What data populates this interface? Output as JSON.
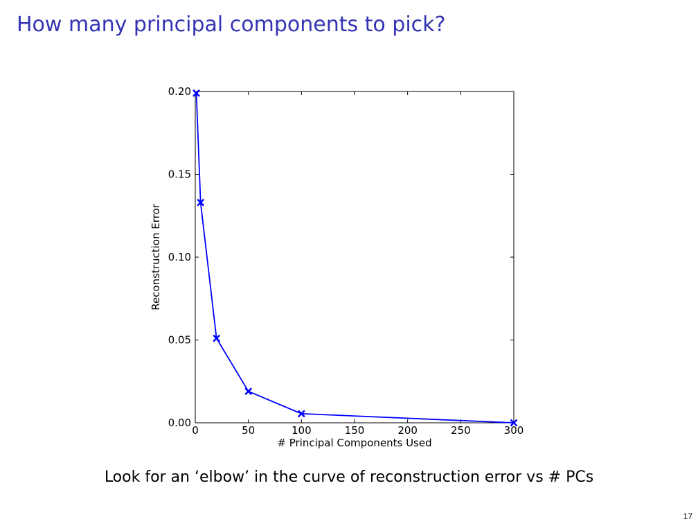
{
  "slide": {
    "title": "How many principal components to pick?",
    "caption": "Look for an ‘elbow’ in the curve of reconstruction error vs # PCs",
    "page_number": "17",
    "title_color": "#3333b3"
  },
  "chart_data": {
    "type": "line",
    "title": "",
    "xlabel": "# Principal Components Used",
    "ylabel": "Reconstruction Error",
    "xlim": [
      0,
      300
    ],
    "ylim": [
      0,
      0.2
    ],
    "x_ticks": [
      {
        "value": 0,
        "label": "0"
      },
      {
        "value": 50,
        "label": "50"
      },
      {
        "value": 100,
        "label": "100"
      },
      {
        "value": 150,
        "label": "150"
      },
      {
        "value": 200,
        "label": "200"
      },
      {
        "value": 250,
        "label": "250"
      },
      {
        "value": 300,
        "label": "300"
      }
    ],
    "y_ticks": [
      {
        "value": 0,
        "label": "0.00"
      },
      {
        "value": 0.05,
        "label": "0.05"
      },
      {
        "value": 0.1,
        "label": "0.10"
      },
      {
        "value": 0.15,
        "label": "0.15"
      },
      {
        "value": 0.2,
        "label": "0.20"
      }
    ],
    "grid": false,
    "series": [
      {
        "marker": "x",
        "color": "#0000ff",
        "points": [
          {
            "x": 1,
            "y": 0.199
          },
          {
            "x": 5,
            "y": 0.133
          },
          {
            "x": 20,
            "y": 0.051
          },
          {
            "x": 50,
            "y": 0.019
          },
          {
            "x": 100,
            "y": 0.0055
          },
          {
            "x": 300,
            "y": 0.0
          }
        ]
      }
    ]
  }
}
